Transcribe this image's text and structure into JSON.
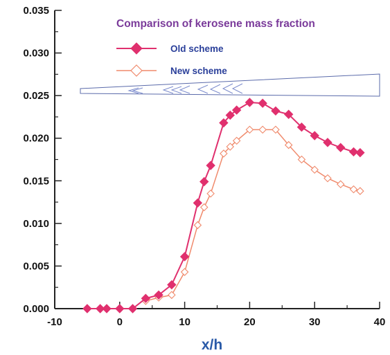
{
  "chart_data": {
    "type": "line",
    "title": "Comparison of kerosene mass fraction",
    "xlabel": "x/h",
    "ylabel": "",
    "xlim": [
      -10,
      40
    ],
    "ylim": [
      0.0,
      0.035
    ],
    "xticks": [
      "-10",
      "0",
      "10",
      "20",
      "30",
      "40"
    ],
    "yticks": [
      "0.000",
      "0.005",
      "0.010",
      "0.015",
      "0.020",
      "0.025",
      "0.030",
      "0.035"
    ],
    "grid": false,
    "legend_position": "top-center",
    "series": [
      {
        "name": "Old scheme",
        "color": "#e0306e",
        "marker": "filled-diamond",
        "x": [
          -5,
          -3,
          -2,
          0,
          2,
          4,
          6,
          8,
          10,
          12,
          13,
          14,
          16,
          17,
          18,
          20,
          22,
          24,
          26,
          28,
          30,
          32,
          34,
          36,
          37
        ],
        "y": [
          0.0,
          0.0,
          0.0,
          0.0,
          0.0,
          0.0012,
          0.0016,
          0.0028,
          0.0061,
          0.0124,
          0.0149,
          0.0168,
          0.0218,
          0.0227,
          0.0233,
          0.0242,
          0.0241,
          0.0232,
          0.0228,
          0.0213,
          0.0203,
          0.0195,
          0.0189,
          0.0184,
          0.0183
        ]
      },
      {
        "name": "New scheme",
        "color": "#f08a6c",
        "marker": "open-diamond",
        "x": [
          4,
          6,
          8,
          10,
          12,
          13,
          14,
          16,
          17,
          18,
          20,
          22,
          24,
          26,
          28,
          30,
          32,
          34,
          36,
          37
        ],
        "y": [
          0.0009,
          0.0013,
          0.0016,
          0.0043,
          0.0098,
          0.0119,
          0.0135,
          0.0182,
          0.019,
          0.0197,
          0.021,
          0.021,
          0.021,
          0.0192,
          0.0175,
          0.0163,
          0.0153,
          0.0146,
          0.014,
          0.0138
        ]
      }
    ]
  },
  "colors": {
    "axis": "#222222",
    "old_scheme": "#e0306e",
    "new_scheme": "#f08a6c",
    "title": "#7a3a9a",
    "legend_text": "#2a3f9a",
    "xlabel": "#2a5aa8",
    "inset_outline": "#5a6aaa"
  }
}
